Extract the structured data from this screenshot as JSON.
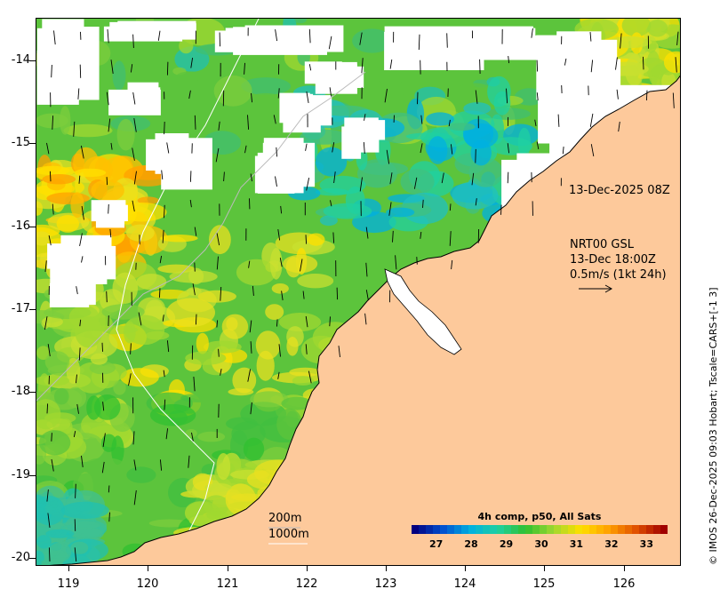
{
  "map": {
    "axes": {
      "lat_ticks": [
        "-14",
        "-15",
        "-16",
        "-17",
        "-18",
        "-19",
        "-20"
      ],
      "lon_ticks": [
        "119",
        "120",
        "121",
        "122",
        "123",
        "124",
        "125",
        "126"
      ],
      "lon_range": [
        118.6,
        126.8
      ],
      "lat_range": [
        -20.15,
        -13.5
      ]
    },
    "annotations": {
      "timestamp": "13-Dec-2025 08Z",
      "current_source": "NRT00 GSL",
      "current_time": "13-Dec 18:00Z",
      "current_scale": "0.5m/s (1kt 24h)",
      "contour_200": "200m",
      "contour_1000": "1000m"
    },
    "legend": {
      "title": "4h comp, p50, All Sats",
      "ticks": [
        "27",
        "28",
        "29",
        "30",
        "31",
        "32",
        "33"
      ],
      "range": [
        26.3,
        33.6
      ]
    },
    "credit": "© IMOS 26-Dec-2025 09:03 Hobart; Tscale=CARS+[-1 3]",
    "colors": {
      "land": "#fdc99b",
      "cloud": "#ffffff",
      "coast": "#000000",
      "colormap": [
        "#000080",
        "#0050d0",
        "#00b0e0",
        "#20d0a0",
        "#30c030",
        "#a0d830",
        "#ffe000",
        "#ffa000",
        "#e05000",
        "#a00000"
      ]
    }
  }
}
